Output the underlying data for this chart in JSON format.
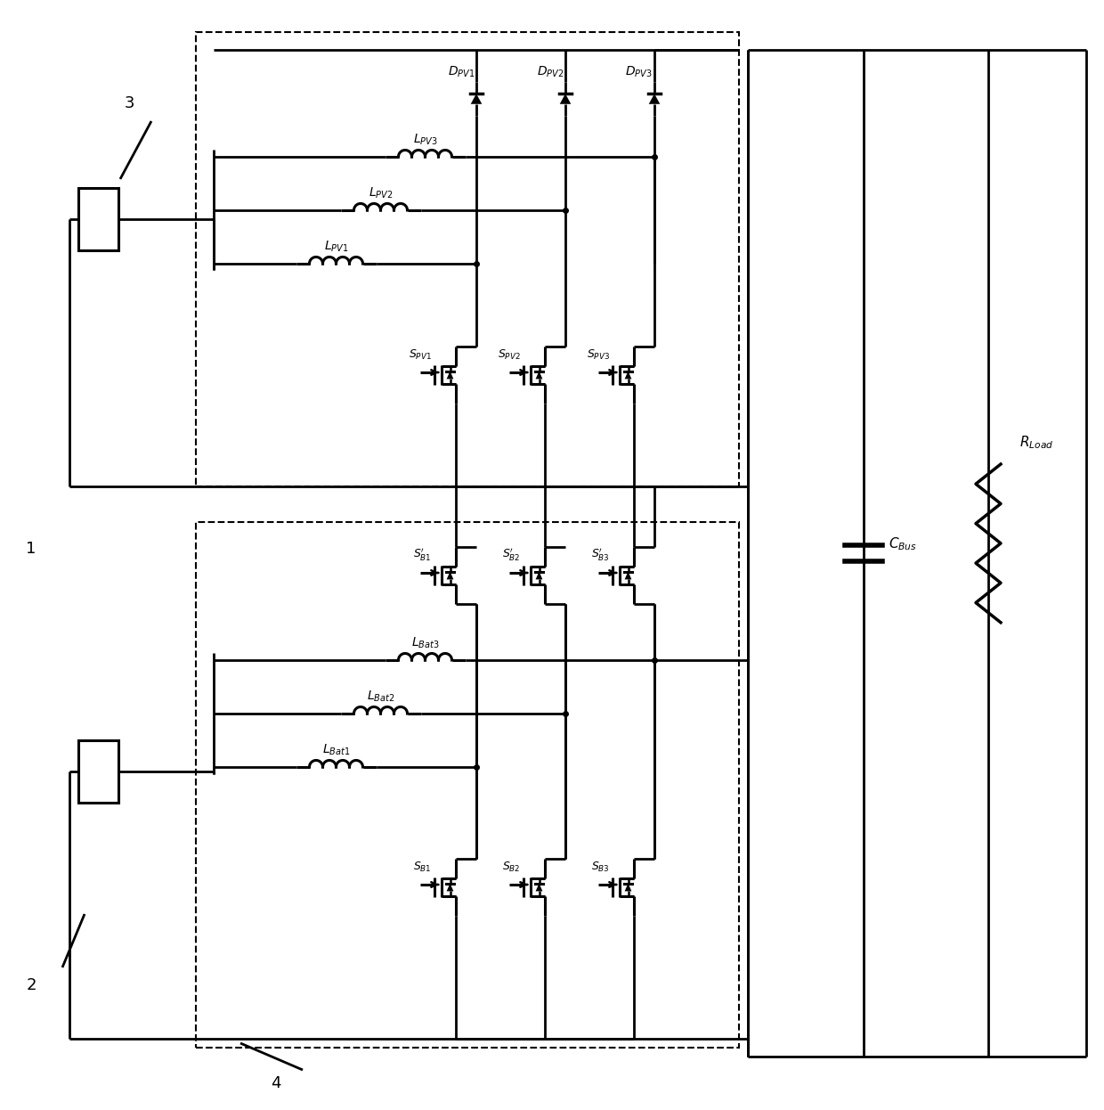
{
  "fig_width": 12.4,
  "fig_height": 12.46,
  "lw": 2.0,
  "clw": 2.2,
  "dlw": 1.5
}
